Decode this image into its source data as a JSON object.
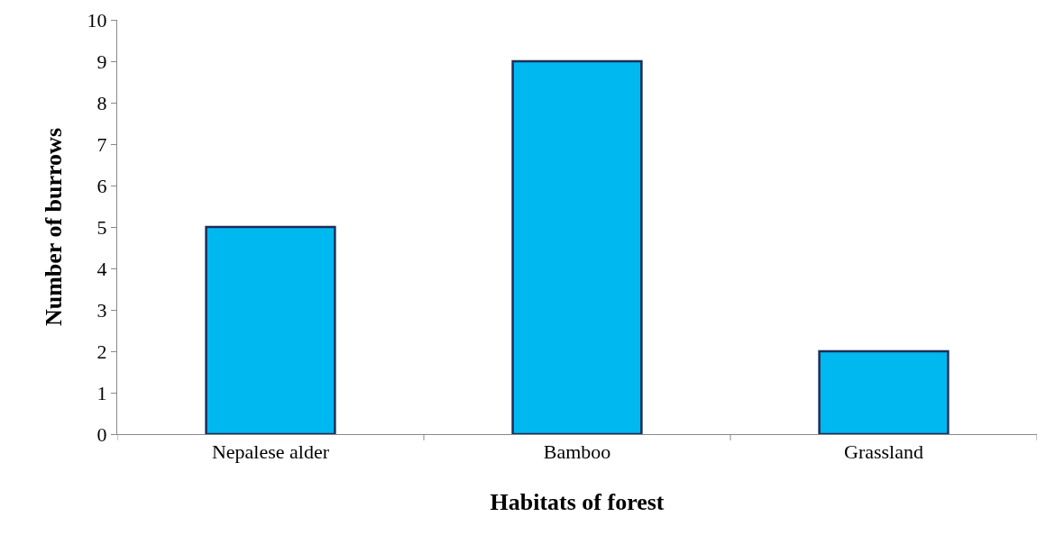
{
  "chart_data": {
    "type": "bar",
    "xlabel": "Habitats of forest",
    "ylabel": "Number of burrows",
    "categories": [
      "Nepalese alder",
      "Bamboo",
      "Grassland"
    ],
    "values": [
      5,
      9,
      2
    ],
    "color": "#00b8f0",
    "ylim": [
      0,
      10
    ],
    "yticks": [
      0,
      1,
      2,
      3,
      4,
      5,
      6,
      7,
      8,
      9,
      10
    ]
  }
}
